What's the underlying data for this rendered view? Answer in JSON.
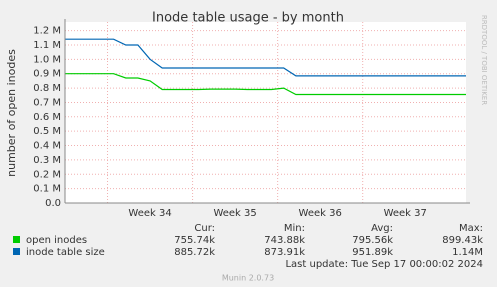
{
  "chart_data": {
    "type": "line",
    "title": "Inode table usage - by month",
    "y_label": "number of open inodes",
    "watermark": "RRDTOOL / TOBI OETIKER",
    "categories": [
      null,
      null,
      null,
      null,
      null,
      null,
      null,
      "Week 34",
      null,
      null,
      null,
      null,
      null,
      null,
      "Week 35",
      null,
      null,
      null,
      null,
      null,
      null,
      "Week 36",
      null,
      null,
      null,
      null,
      null,
      null,
      "Week 37",
      null,
      null,
      null,
      null,
      null
    ],
    "series": [
      {
        "name": "open inodes",
        "color": "#00cc00",
        "values": [
          900000,
          900000,
          900000,
          900000,
          900000,
          870000,
          870000,
          850000,
          790000,
          790000,
          790000,
          790000,
          793000,
          793000,
          793000,
          790000,
          790000,
          790000,
          800000,
          755000,
          755000,
          755000,
          755000,
          755000,
          755000,
          755000,
          755000,
          755000,
          755000,
          755000,
          755000,
          755000,
          755000,
          755000
        ],
        "stats": [
          "755.74k",
          "743.88k",
          "795.56k",
          "899.43k"
        ]
      },
      {
        "name": "inode table size",
        "color": "#0066b3",
        "values": [
          1140000,
          1140000,
          1140000,
          1140000,
          1140000,
          1100000,
          1100000,
          1000000,
          940000,
          940000,
          940000,
          940000,
          940000,
          940000,
          940000,
          940000,
          940000,
          940000,
          940000,
          885000,
          885000,
          885000,
          885000,
          885000,
          885000,
          885000,
          885000,
          885000,
          885000,
          885000,
          885000,
          885000,
          885000,
          885000
        ],
        "stats": [
          "885.72k",
          "873.91k",
          "951.89k",
          "1.14M"
        ]
      }
    ],
    "stat_headers": [
      "Cur:",
      "Min:",
      "Avg:",
      "Max:"
    ],
    "ylim": [
      0,
      1260000
    ],
    "yticks": [
      {
        "value": 0,
        "label": "0.0"
      },
      {
        "value": 100000,
        "label": "0.1 M"
      },
      {
        "value": 200000,
        "label": "0.2 M"
      },
      {
        "value": 300000,
        "label": "0.3 M"
      },
      {
        "value": 400000,
        "label": "0.4 M"
      },
      {
        "value": 500000,
        "label": "0.5 M"
      },
      {
        "value": 600000,
        "label": "0.6 M"
      },
      {
        "value": 700000,
        "label": "0.7 M"
      },
      {
        "value": 800000,
        "label": "0.8 M"
      },
      {
        "value": 900000,
        "label": "0.9 M"
      },
      {
        "value": 1000000,
        "label": "1.0 M"
      },
      {
        "value": 1100000,
        "label": "1.1 M"
      },
      {
        "value": 1200000,
        "label": "1.2 M"
      }
    ],
    "grid": true,
    "last_update": "Last update: Tue Sep 17 00:00:02 2024",
    "footer": "Munin 2.0.73"
  }
}
